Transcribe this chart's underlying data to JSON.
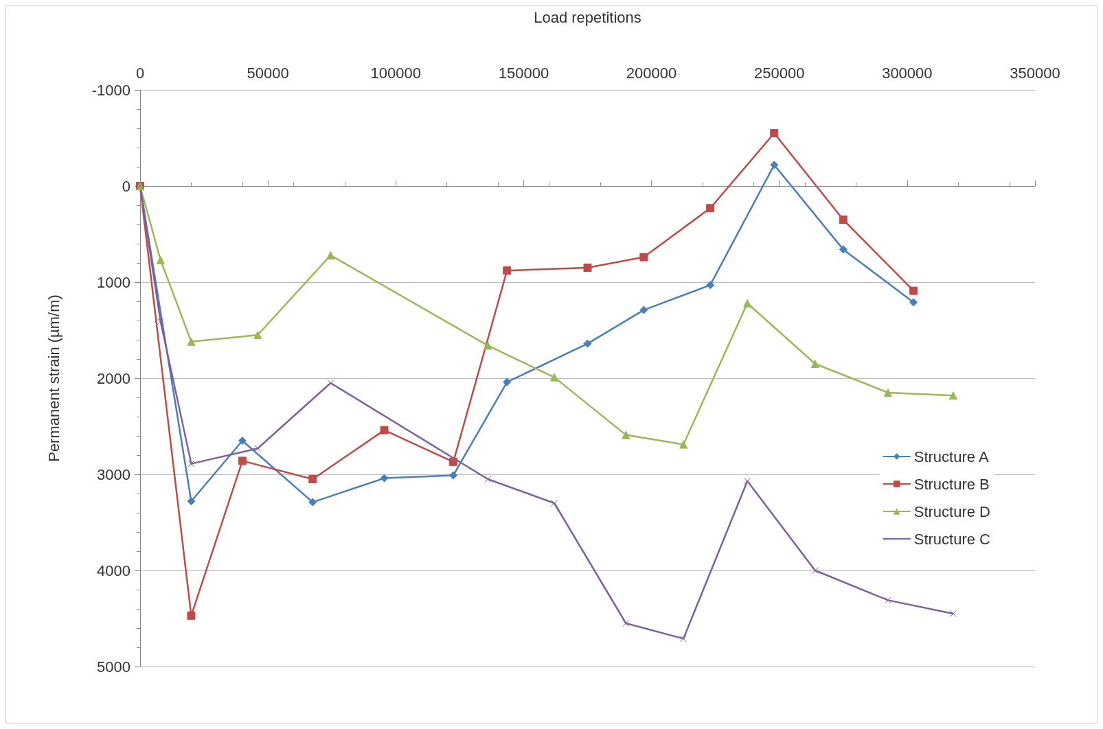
{
  "chart_data": {
    "type": "line",
    "xlabel": "Load repetitions",
    "ylabel": "Permanent strain (µm/m)",
    "xlim": [
      0,
      350000
    ],
    "xticks": [
      0,
      50000,
      100000,
      150000,
      200000,
      250000,
      300000,
      350000
    ],
    "ylim": [
      5000,
      -1000
    ],
    "yticks": [
      -1000,
      0,
      1000,
      2000,
      3000,
      4000,
      5000
    ],
    "grid": "y",
    "legend": "right",
    "series": [
      {
        "name": "Structure A",
        "color": "#4a7ebb",
        "marker": "diamond",
        "x": [
          0,
          20000,
          40000,
          67500,
          95500,
          122500,
          143500,
          175000,
          197000,
          223000,
          248000,
          275000,
          302500
        ],
        "values": [
          0,
          3280,
          2650,
          3290,
          3040,
          3010,
          2040,
          1640,
          1290,
          1030,
          -220,
          660,
          1210
        ]
      },
      {
        "name": "Structure B",
        "color": "#be4b48",
        "marker": "square",
        "x": [
          0,
          20000,
          40000,
          67500,
          95500,
          122500,
          143500,
          175000,
          197000,
          223000,
          248000,
          275000,
          302500
        ],
        "values": [
          0,
          4470,
          2860,
          3050,
          2540,
          2870,
          880,
          850,
          740,
          230,
          -550,
          350,
          1090
        ]
      },
      {
        "name": "Structure D",
        "color": "#98b954",
        "marker": "triangle",
        "x": [
          0,
          8000,
          20000,
          46000,
          74500,
          136000,
          162000,
          190000,
          212500,
          237500,
          264000,
          292500,
          318000
        ],
        "values": [
          0,
          770,
          1620,
          1550,
          720,
          1660,
          1990,
          2590,
          2690,
          1220,
          1850,
          2150,
          2180
        ]
      },
      {
        "name": "Structure C",
        "color": "#7d60a0",
        "marker": "cross",
        "x": [
          0,
          8000,
          20000,
          46000,
          74500,
          136000,
          162000,
          190000,
          212500,
          237500,
          264000,
          292500,
          318000
        ],
        "values": [
          0,
          1410,
          2890,
          2730,
          2050,
          3050,
          3300,
          4550,
          4710,
          3070,
          4000,
          4310,
          4450
        ]
      }
    ]
  }
}
